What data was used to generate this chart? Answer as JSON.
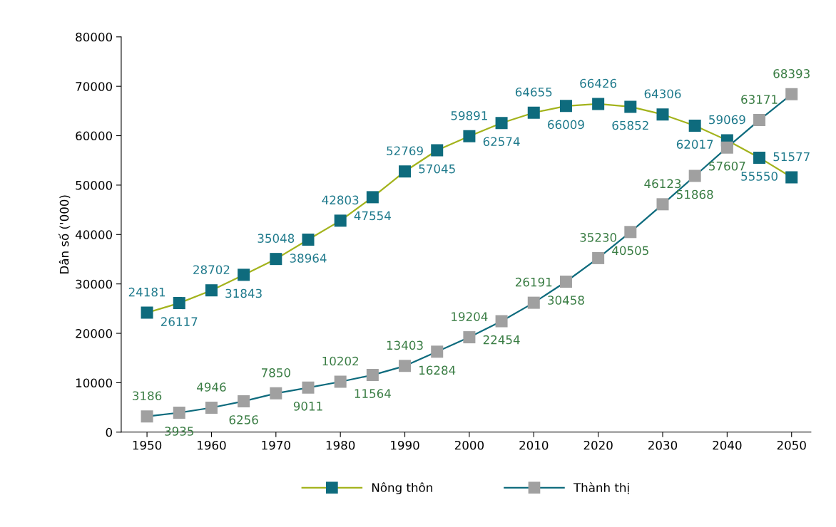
{
  "chart_data": {
    "type": "line",
    "ylabel": "Dân số ('000)",
    "x": [
      1950,
      1955,
      1960,
      1965,
      1970,
      1975,
      1980,
      1985,
      1990,
      1995,
      2000,
      2005,
      2010,
      2015,
      2020,
      2025,
      2030,
      2035,
      2040,
      2045,
      2050
    ],
    "series": [
      {
        "name": "Nông thôn",
        "color": "#a3b31c",
        "colors": [
          "#0e6b7d",
          "#0e6b7d",
          "#0e6b7d",
          "#0e6b7d",
          "#0e6b7d",
          "#0e6b7d",
          "#0e6b7d",
          "#0e6b7d",
          "#0e6b7d",
          "#0e6b7d",
          "#0e6b7d",
          "#0e6b7d",
          "#0e6b7d",
          "#0e6b7d",
          "#0e6b7d",
          "#0e6b7d",
          "#0e6b7d",
          "#0e6b7d",
          "#0e6b7d",
          "#0e6b7d",
          "#0e6b7d"
        ],
        "values": [
          24181,
          26117,
          28702,
          31843,
          35048,
          38964,
          42803,
          47554,
          52769,
          57045,
          59891,
          62574,
          64655,
          66009,
          66426,
          65852,
          64306,
          62017,
          59069,
          55550,
          51577
        ]
      },
      {
        "name": "Thành thị",
        "color": "#0e6b7d",
        "colors": [
          "#a0a0a0",
          "#a0a0a0",
          "#a0a0a0",
          "#a0a0a0",
          "#a0a0a0",
          "#a0a0a0",
          "#a0a0a0",
          "#a0a0a0",
          "#a0a0a0",
          "#a0a0a0",
          "#a0a0a0",
          "#a0a0a0",
          "#a0a0a0",
          "#a0a0a0",
          "#a0a0a0",
          "#a0a0a0",
          "#a0a0a0",
          "#a0a0a0",
          "#a0a0a0",
          "#a0a0a0",
          "#a0a0a0"
        ],
        "values": [
          3186,
          3935,
          4946,
          6256,
          7850,
          9011,
          10202,
          11564,
          13403,
          16284,
          19204,
          22454,
          26191,
          30458,
          35230,
          40505,
          46123,
          51868,
          57607,
          63171,
          68393
        ]
      }
    ],
    "xlim": [
      1946,
      2053
    ],
    "xticks": [
      1950,
      1960,
      1970,
      1980,
      1990,
      2000,
      2010,
      2020,
      2030,
      2040,
      2050
    ],
    "ylim": [
      0,
      80000
    ],
    "yticks": [
      0,
      10000,
      20000,
      30000,
      40000,
      50000,
      60000,
      70000,
      80000
    ],
    "data_labels": true,
    "marker": "square",
    "line_style": "solid",
    "grid": false,
    "legend": "bottom"
  }
}
